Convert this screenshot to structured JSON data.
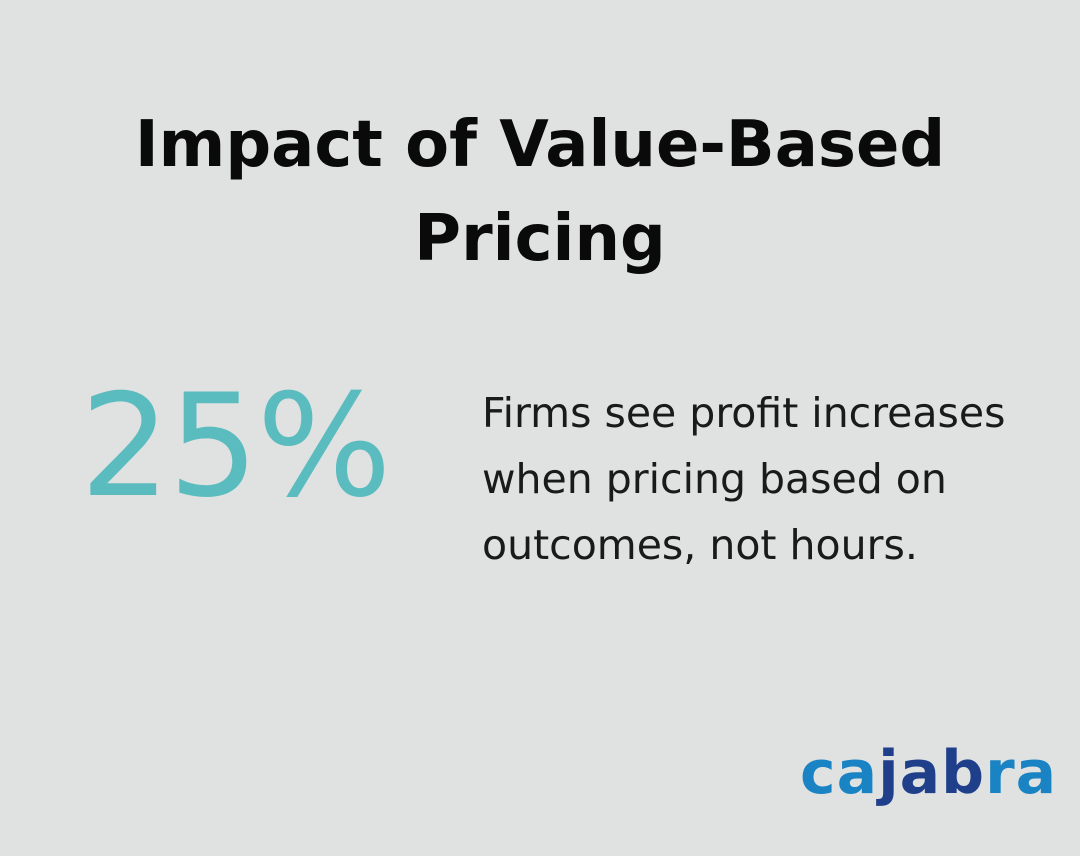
{
  "title": "Impact of Value-Based Pricing",
  "stat": {
    "value": "25%",
    "color": "#5bbcbf"
  },
  "description": "Firms see profit increases when pricing based on outcomes, not hours.",
  "logo": {
    "part1": "ca",
    "part2": "jab",
    "part3": "ra",
    "text": "cajabra"
  }
}
